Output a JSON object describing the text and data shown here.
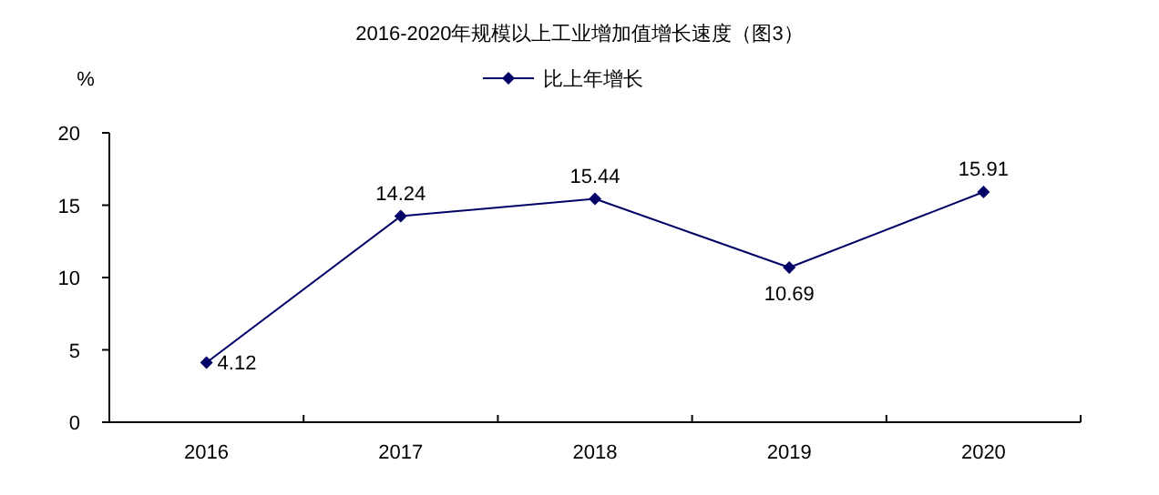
{
  "chart_data": {
    "type": "line",
    "title": "2016-2020年规模以上工业增加值增长速度（图3）",
    "ylabel": "%",
    "categories": [
      "2016",
      "2017",
      "2018",
      "2019",
      "2020"
    ],
    "series": [
      {
        "name": "比上年增长",
        "color": "#000066",
        "values": [
          4.12,
          14.24,
          15.44,
          10.69,
          15.91
        ]
      }
    ],
    "ylim": [
      0,
      20
    ],
    "yticks": [
      0,
      5,
      10,
      15,
      20
    ],
    "grid": false,
    "legend": "top",
    "marker": "diamond",
    "line_style": "solid",
    "data_labels": true
  }
}
